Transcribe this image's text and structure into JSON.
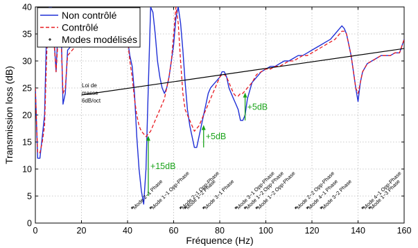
{
  "chart_data": {
    "type": "line",
    "xlabel": "Fréquence (Hz)",
    "ylabel": "Transmission loss (dB)",
    "xlim": [
      0,
      160
    ],
    "ylim": [
      0,
      40
    ],
    "xticks": [
      0,
      20,
      40,
      60,
      80,
      100,
      120,
      140,
      160
    ],
    "yticks": [
      0,
      5,
      10,
      15,
      20,
      25,
      30,
      35,
      40
    ],
    "grid": "dotted",
    "legend_position": "top-left",
    "legend": [
      {
        "label": "Non contrôlé",
        "style": "solid",
        "color": "#1f2fd6"
      },
      {
        "label": "Contrôlé",
        "style": "dashed",
        "color": "#e8191f"
      },
      {
        "label": "Modes modélisés",
        "style": "marker",
        "color": "#000000"
      }
    ],
    "series": [
      {
        "name": "Non contrôlé",
        "color": "#1f2fd6",
        "x": [
          0,
          1,
          2,
          3,
          4,
          5,
          6,
          7,
          8,
          9,
          10,
          11,
          12,
          13,
          14,
          16,
          18,
          20,
          22,
          24,
          26,
          28,
          30,
          32,
          34,
          35,
          36,
          37,
          38,
          39,
          40,
          41,
          42,
          43,
          44,
          45,
          46,
          47,
          48,
          49,
          50,
          51,
          52,
          53,
          54,
          55,
          56,
          57,
          58,
          59,
          60,
          61,
          62,
          63,
          64,
          65,
          66,
          67,
          68,
          69,
          70,
          71,
          72,
          73,
          74,
          75,
          76,
          77,
          78,
          79,
          80,
          81,
          82,
          83,
          84,
          85,
          86,
          87,
          88,
          89,
          90,
          91,
          92,
          94,
          96,
          98,
          100,
          102,
          104,
          106,
          108,
          110,
          112,
          114,
          116,
          118,
          120,
          122,
          124,
          126,
          128,
          130,
          132,
          133,
          134,
          135,
          136,
          137,
          138,
          139,
          140,
          141,
          142,
          144,
          146,
          148,
          150,
          152,
          154,
          156,
          158,
          160
        ],
        "y": [
          25,
          12,
          12,
          16,
          20,
          38,
          40,
          40,
          35,
          28,
          38,
          39,
          22,
          24,
          32,
          33,
          33.5,
          34,
          34.5,
          35,
          35.5,
          36,
          36.5,
          37,
          37.5,
          38,
          38,
          37.5,
          37,
          36,
          34,
          31,
          29,
          24,
          16,
          10,
          6,
          3.5,
          10,
          25,
          40,
          39,
          35,
          30,
          27,
          25,
          24,
          25,
          27,
          30,
          33,
          38,
          40,
          37,
          32,
          26,
          21,
          18,
          16,
          14,
          14,
          16,
          18,
          20,
          22,
          24,
          25,
          25.5,
          26,
          26.5,
          27,
          28,
          28,
          27,
          25,
          24,
          23,
          22,
          21,
          19,
          19,
          20,
          23,
          26,
          27,
          28,
          28.5,
          29,
          29,
          29.5,
          30,
          30,
          30.5,
          31,
          31,
          31.5,
          32,
          32.5,
          33,
          33.5,
          34,
          35,
          36,
          36.5,
          36,
          35,
          33,
          31,
          28,
          25,
          22.5,
          26,
          28,
          29.5,
          30,
          30.5,
          31,
          31,
          31,
          31.5,
          31.5,
          34
        ]
      },
      {
        "name": "Contrôlé",
        "color": "#e8191f",
        "x": [
          0,
          1,
          2,
          3,
          4,
          5,
          6,
          7,
          8,
          9,
          10,
          11,
          12,
          13,
          14,
          16,
          18,
          20,
          22,
          24,
          26,
          28,
          30,
          32,
          34,
          36,
          38,
          40,
          41,
          42,
          43,
          44,
          45,
          46,
          47,
          48,
          49,
          50,
          51,
          52,
          53,
          54,
          55,
          56,
          57,
          58,
          59,
          60,
          61,
          62,
          63,
          64,
          65,
          66,
          67,
          68,
          69,
          70,
          71,
          72,
          73,
          74,
          75,
          76,
          77,
          78,
          79,
          80,
          81,
          82,
          83,
          84,
          85,
          86,
          87,
          88,
          89,
          90,
          91,
          92,
          94,
          96,
          98,
          100,
          102,
          104,
          106,
          108,
          110,
          112,
          114,
          116,
          118,
          120,
          122,
          124,
          126,
          128,
          130,
          132,
          133,
          134,
          135,
          136,
          137,
          138,
          139,
          140,
          141,
          142,
          144,
          146,
          148,
          150,
          152,
          154,
          156,
          158,
          160
        ],
        "y": [
          25,
          13,
          13,
          15,
          18,
          32,
          36,
          38,
          34,
          28,
          35,
          36,
          24,
          25,
          31,
          32,
          33,
          33.5,
          34,
          34.5,
          35,
          35.5,
          36,
          36.5,
          37,
          37.5,
          36,
          34,
          30,
          27,
          23,
          20,
          18,
          17,
          16.5,
          16,
          16.5,
          17,
          18,
          19,
          20,
          21,
          22,
          23,
          25,
          27,
          30,
          35,
          40,
          37,
          30,
          24,
          21,
          20,
          19,
          18,
          17,
          17.5,
          18,
          19,
          20,
          21,
          22,
          23,
          24,
          25,
          26,
          27,
          27.5,
          27.5,
          27,
          26,
          25,
          24,
          23.5,
          23.5,
          24,
          24,
          24.5,
          25,
          26,
          27.5,
          28,
          28.5,
          28.5,
          29,
          29,
          29.5,
          30,
          30,
          30.5,
          31,
          31,
          31.5,
          32,
          32.5,
          33,
          33.5,
          34,
          35,
          35.5,
          35.5,
          35,
          33,
          31,
          28,
          25,
          24,
          26,
          28,
          29.5,
          30,
          30.5,
          31,
          31,
          31,
          31.5,
          31.5,
          34
        ]
      },
      {
        "name": "Loi de masse 6dB/oct",
        "color": "#000000",
        "x": [
          20,
          160
        ],
        "y": [
          23.7,
          32.3
        ]
      }
    ],
    "mode_markers": [
      {
        "x": 42,
        "label": "Mode 2−1 Phase"
      },
      {
        "x": 50,
        "label": "Mode 1−1 Opp-Phase"
      },
      {
        "x": 63,
        "label": "Mode 2−1 Opp-Phase"
      },
      {
        "x": 65,
        "label": "Mode 1−2 Phase"
      },
      {
        "x": 73,
        "label": "Mode 3−1 Phase"
      },
      {
        "x": 87,
        "label": "Mode 3−1 Opp-Phase"
      },
      {
        "x": 91,
        "label": "Mode 1−2 Opp-Phase"
      },
      {
        "x": 96,
        "label": "Mode 1−2 Opp-Phase"
      },
      {
        "x": 113,
        "label": "Mode 2−2 Opp-Phase"
      },
      {
        "x": 118,
        "label": "Mode 4−1 Phase"
      },
      {
        "x": 124,
        "label": "Mode 3−2 Phase"
      },
      {
        "x": 142,
        "label": "Mode 4−1 Opp-Phase"
      },
      {
        "x": 145,
        "label": "Mode 1−3 Phase"
      }
    ],
    "annotations": [
      {
        "text": "+15dB",
        "arrow_x": 49,
        "y_from": 5,
        "y_to": 16,
        "color": "#1aa31a"
      },
      {
        "text": "+5dB",
        "arrow_x": 73,
        "y_from": 14,
        "y_to": 18,
        "color": "#1aa31a"
      },
      {
        "text": "+5dB",
        "arrow_x": 91,
        "y_from": 19,
        "y_to": 24,
        "color": "#1aa31a"
      },
      {
        "text": "Loi de masse 6dB/oct",
        "lines": [
          "Loi de",
          "masse",
          "6dB/oct"
        ],
        "color": "#000000"
      }
    ]
  }
}
